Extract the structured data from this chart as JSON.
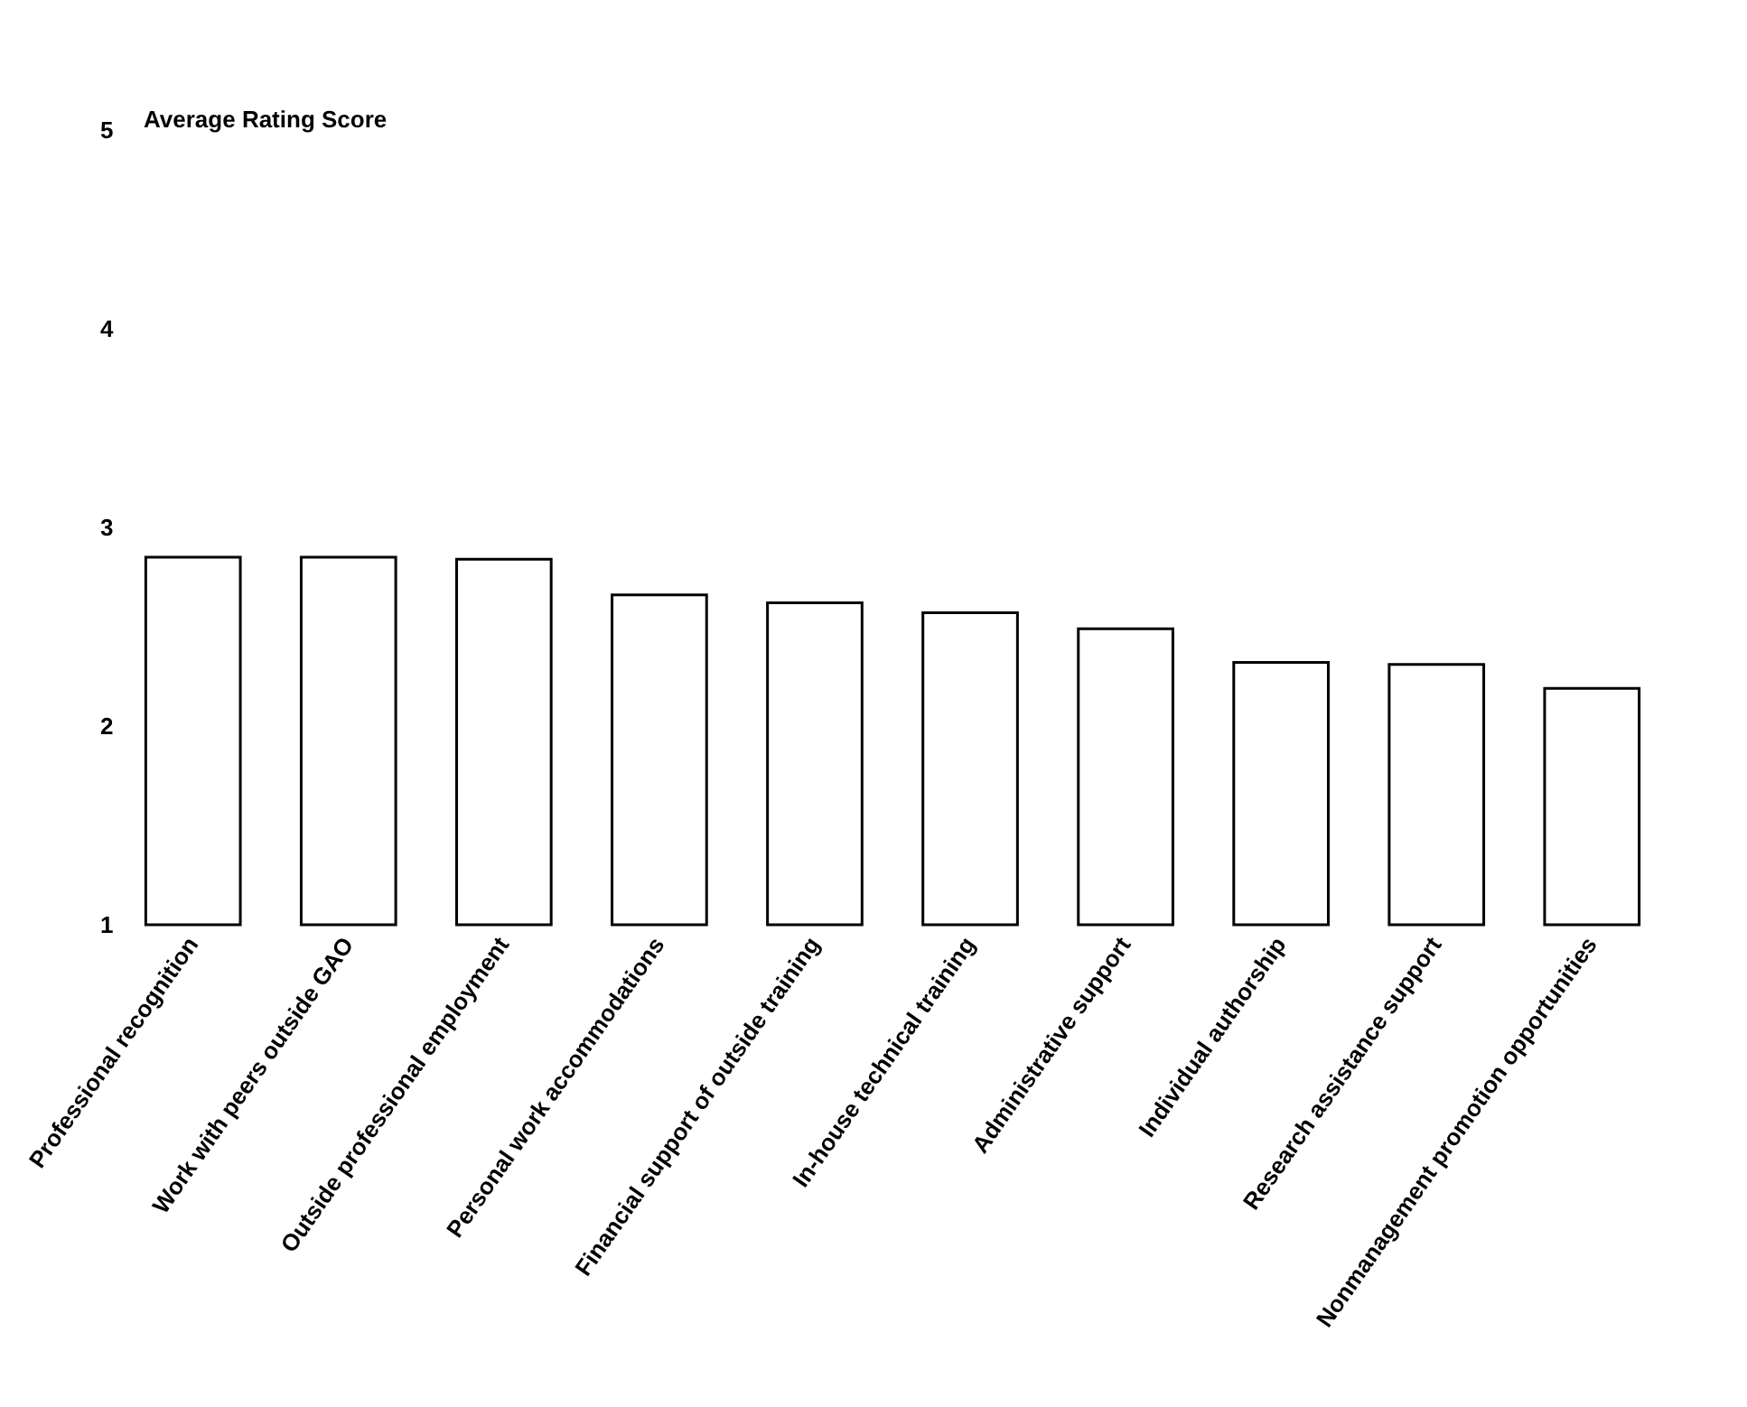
{
  "chart_data": {
    "type": "bar",
    "ylabel": "Average Rating Score",
    "categories": [
      "Professional recognition",
      "Work with peers outside GAO",
      "Outside professional employment",
      "Personal work accommodations",
      "Financial support of outside training",
      "In-house technical training",
      "Administrative support",
      "Individual authorship",
      "Research assistance support",
      "Nonmanagement promotion opportunities"
    ],
    "values": [
      2.85,
      2.85,
      2.84,
      2.66,
      2.62,
      2.57,
      2.49,
      2.32,
      2.31,
      2.19
    ],
    "color": "#ffffff",
    "ylim": [
      1,
      5
    ],
    "yticks": [
      1,
      2,
      3,
      4,
      5
    ],
    "grid": false
  }
}
